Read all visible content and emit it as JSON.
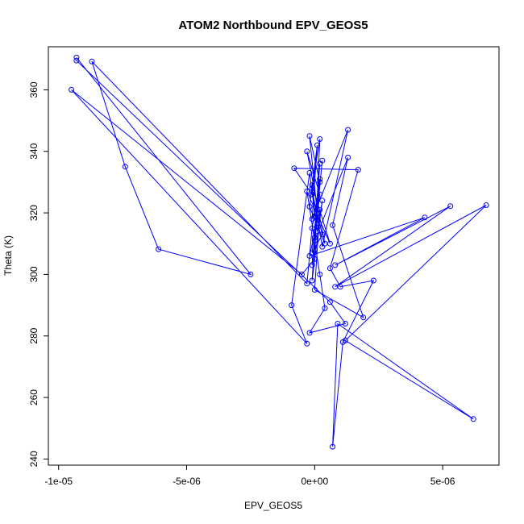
{
  "chart_data": {
    "type": "scatter",
    "title": "ATOM2 Northbound EPV_GEOS5",
    "xlabel": "EPV_GEOS5",
    "ylabel": "Theta (K)",
    "xlim": [
      -1.04e-05,
      7.2e-06
    ],
    "ylim": [
      238,
      374
    ],
    "x_ticks": [
      -1e-05,
      -5e-06,
      0,
      5e-06
    ],
    "x_tick_labels": [
      "-1e-05",
      "-5e-06",
      "0e+00",
      "5e-06"
    ],
    "y_ticks": [
      240,
      260,
      280,
      300,
      320,
      340,
      360
    ],
    "y_tick_labels": [
      "240",
      "260",
      "280",
      "300",
      "320",
      "340",
      "360"
    ],
    "grid": false,
    "legend": "none",
    "color": "#0000ff",
    "series": [
      {
        "points": [
          [
            -9.3e-06,
            370.5
          ],
          [
            -2.5e-06,
            300
          ],
          [
            -6.1e-06,
            308.2
          ],
          [
            -7.4e-06,
            335
          ],
          [
            -8.7e-06,
            369.2
          ],
          [
            -3e-07,
            297
          ],
          [
            -1e-07,
            315
          ],
          [
            2e-07,
            330
          ],
          [
            -2e-07,
            345
          ],
          [
            1e-07,
            320
          ],
          [
            -1e-07,
            303
          ],
          [
            3e-07,
            337
          ],
          [
            0,
            312
          ],
          [
            2e-07,
            326
          ],
          [
            -3e-07,
            340
          ],
          [
            4e-07,
            310
          ],
          [
            -2e-07,
            322
          ],
          [
            1e-07,
            342
          ],
          [
            -1e-07,
            318
          ],
          [
            1.3e-06,
            347
          ],
          [
            3e-07,
            309
          ],
          [
            -1e-07,
            328
          ],
          [
            2e-07,
            344
          ],
          [
            0,
            305
          ],
          [
            -5e-07,
            300
          ],
          [
            -9.5e-06,
            360
          ],
          [
            -3e-07,
            277.5
          ],
          [
            -9e-07,
            290
          ],
          [
            -2e-07,
            333
          ],
          [
            1e-07,
            314
          ],
          [
            3e-07,
            324
          ],
          [
            -1e-07,
            298
          ],
          [
            2e-07,
            336
          ],
          [
            0,
            311
          ],
          [
            1.3e-06,
            338
          ],
          [
            7e-07,
            316
          ],
          [
            1.9e-06,
            286
          ],
          [
            0,
            295
          ],
          [
            2e-07,
            321
          ],
          [
            -2e-07,
            306
          ],
          [
            4.3e-06,
            318.5
          ],
          [
            8e-07,
            303
          ],
          [
            5.3e-06,
            322.2
          ],
          [
            8e-07,
            296
          ],
          [
            6.7e-06,
            322.5
          ],
          [
            1.2e-06,
            278.5
          ],
          [
            6.2e-06,
            253
          ],
          [
            9e-07,
            284
          ],
          [
            7e-07,
            244
          ],
          [
            1.1e-06,
            278
          ],
          [
            2.3e-06,
            298
          ],
          [
            1e-06,
            296
          ],
          [
            6e-07,
            302
          ],
          [
            1.7e-06,
            334
          ],
          [
            -8e-07,
            334.5
          ],
          [
            -1e-07,
            326
          ],
          [
            3e-07,
            313
          ],
          [
            -1e-07,
            307
          ],
          [
            2e-07,
            331
          ],
          [
            0,
            319
          ],
          [
            -1e-07,
            329
          ],
          [
            6e-07,
            310
          ],
          [
            -3e-07,
            327
          ],
          [
            2e-07,
            300
          ],
          [
            4e-07,
            289
          ],
          [
            -2e-07,
            281
          ],
          [
            1.2e-06,
            284
          ],
          [
            6e-07,
            291
          ],
          [
            -9.3e-06,
            369.5
          ]
        ]
      }
    ]
  }
}
